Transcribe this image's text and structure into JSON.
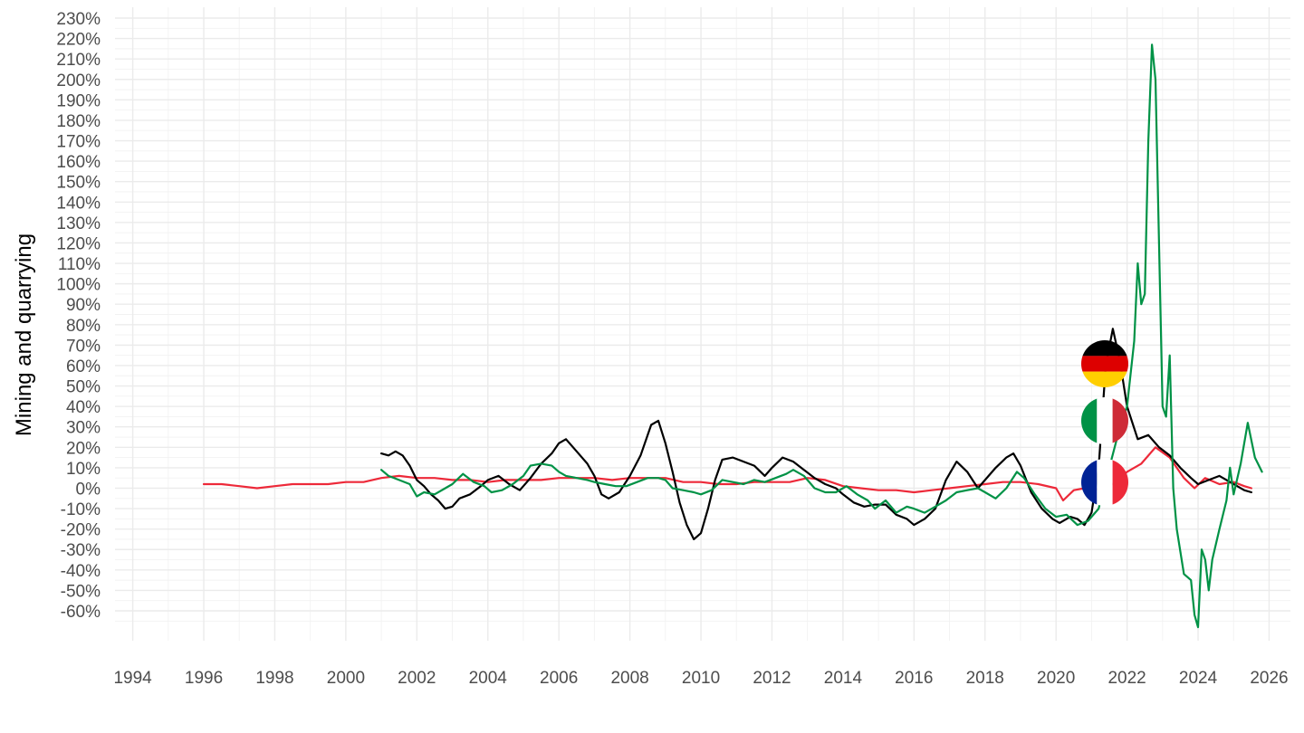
{
  "chart_data": {
    "type": "line",
    "title": "",
    "xlabel": "",
    "ylabel": "Mining and quarrying",
    "xlim": [
      1994,
      2026
    ],
    "ylim": [
      -70,
      230
    ],
    "grid": true,
    "legend": "flags at end of lines",
    "x_ticks": [
      "1994",
      "1996",
      "1998",
      "2000",
      "2002",
      "2004",
      "2006",
      "2008",
      "2010",
      "2012",
      "2014",
      "2016",
      "2018",
      "2020",
      "2022",
      "2024",
      "2026"
    ],
    "y_ticks": [
      "-60%",
      "-50%",
      "-40%",
      "-30%",
      "-20%",
      "-10%",
      "0%",
      "10%",
      "20%",
      "30%",
      "40%",
      "50%",
      "60%",
      "70%",
      "80%",
      "90%",
      "100%",
      "110%",
      "120%",
      "130%",
      "140%",
      "150%",
      "160%",
      "170%",
      "180%",
      "190%",
      "200%",
      "210%",
      "220%",
      "230%"
    ],
    "series": [
      {
        "country": "Germany",
        "color": "#000000",
        "flag_icon": "germany-flag-icon",
        "flag_value": 60,
        "points": [
          [
            2001.0,
            17
          ],
          [
            2001.2,
            16
          ],
          [
            2001.4,
            18
          ],
          [
            2001.6,
            16
          ],
          [
            2001.8,
            11
          ],
          [
            2002.0,
            4
          ],
          [
            2002.2,
            1
          ],
          [
            2002.4,
            -3
          ],
          [
            2002.6,
            -6
          ],
          [
            2002.8,
            -10
          ],
          [
            2003.0,
            -9
          ],
          [
            2003.2,
            -5
          ],
          [
            2003.5,
            -3
          ],
          [
            2003.8,
            1
          ],
          [
            2004.0,
            4
          ],
          [
            2004.3,
            6
          ],
          [
            2004.6,
            2
          ],
          [
            2004.9,
            -1
          ],
          [
            2005.2,
            5
          ],
          [
            2005.5,
            12
          ],
          [
            2005.8,
            17
          ],
          [
            2006.0,
            22
          ],
          [
            2006.2,
            24
          ],
          [
            2006.5,
            18
          ],
          [
            2006.8,
            12
          ],
          [
            2007.0,
            6
          ],
          [
            2007.2,
            -3
          ],
          [
            2007.4,
            -5
          ],
          [
            2007.7,
            -2
          ],
          [
            2008.0,
            6
          ],
          [
            2008.3,
            16
          ],
          [
            2008.6,
            31
          ],
          [
            2008.8,
            33
          ],
          [
            2009.0,
            22
          ],
          [
            2009.2,
            8
          ],
          [
            2009.4,
            -7
          ],
          [
            2009.6,
            -18
          ],
          [
            2009.8,
            -25
          ],
          [
            2010.0,
            -22
          ],
          [
            2010.2,
            -10
          ],
          [
            2010.4,
            4
          ],
          [
            2010.6,
            14
          ],
          [
            2010.9,
            15
          ],
          [
            2011.2,
            13
          ],
          [
            2011.5,
            11
          ],
          [
            2011.8,
            6
          ],
          [
            2012.0,
            10
          ],
          [
            2012.3,
            15
          ],
          [
            2012.6,
            13
          ],
          [
            2012.9,
            9
          ],
          [
            2013.2,
            5
          ],
          [
            2013.5,
            2
          ],
          [
            2013.8,
            0
          ],
          [
            2014.0,
            -3
          ],
          [
            2014.3,
            -7
          ],
          [
            2014.6,
            -9
          ],
          [
            2014.9,
            -8
          ],
          [
            2015.2,
            -8
          ],
          [
            2015.5,
            -13
          ],
          [
            2015.8,
            -15
          ],
          [
            2016.0,
            -18
          ],
          [
            2016.3,
            -15
          ],
          [
            2016.6,
            -10
          ],
          [
            2016.9,
            4
          ],
          [
            2017.2,
            13
          ],
          [
            2017.5,
            8
          ],
          [
            2017.8,
            0
          ],
          [
            2018.0,
            4
          ],
          [
            2018.3,
            10
          ],
          [
            2018.6,
            15
          ],
          [
            2018.8,
            17
          ],
          [
            2019.0,
            11
          ],
          [
            2019.3,
            -2
          ],
          [
            2019.6,
            -10
          ],
          [
            2019.9,
            -15
          ],
          [
            2020.1,
            -17
          ],
          [
            2020.4,
            -14
          ],
          [
            2020.6,
            -15
          ],
          [
            2020.8,
            -18
          ],
          [
            2021.0,
            -12
          ],
          [
            2021.2,
            10
          ],
          [
            2021.4,
            60
          ],
          [
            2021.6,
            78
          ],
          [
            2021.8,
            62
          ],
          [
            2022.0,
            40
          ],
          [
            2022.3,
            24
          ],
          [
            2022.6,
            26
          ],
          [
            2022.9,
            20
          ],
          [
            2023.2,
            16
          ],
          [
            2023.5,
            10
          ],
          [
            2023.8,
            5
          ],
          [
            2024.0,
            2
          ],
          [
            2024.3,
            4
          ],
          [
            2024.6,
            6
          ],
          [
            2024.9,
            3
          ],
          [
            2025.1,
            1
          ],
          [
            2025.3,
            -1
          ],
          [
            2025.5,
            -2
          ]
        ]
      },
      {
        "country": "Italy",
        "color": "#009246",
        "flag_icon": "italy-flag-icon",
        "flag_value": 33,
        "points": [
          [
            2001.0,
            9
          ],
          [
            2001.2,
            6
          ],
          [
            2001.5,
            4
          ],
          [
            2001.8,
            2
          ],
          [
            2002.0,
            -4
          ],
          [
            2002.2,
            -2
          ],
          [
            2002.5,
            -3
          ],
          [
            2002.8,
            0
          ],
          [
            2003.0,
            2
          ],
          [
            2003.3,
            7
          ],
          [
            2003.6,
            3
          ],
          [
            2003.9,
            1
          ],
          [
            2004.1,
            -2
          ],
          [
            2004.4,
            -1
          ],
          [
            2004.7,
            2
          ],
          [
            2005.0,
            6
          ],
          [
            2005.2,
            11
          ],
          [
            2005.5,
            12
          ],
          [
            2005.8,
            11
          ],
          [
            2006.0,
            8
          ],
          [
            2006.2,
            6
          ],
          [
            2006.5,
            5
          ],
          [
            2006.8,
            4
          ],
          [
            2007.0,
            3
          ],
          [
            2007.3,
            2
          ],
          [
            2007.6,
            1
          ],
          [
            2007.9,
            1
          ],
          [
            2008.2,
            3
          ],
          [
            2008.5,
            5
          ],
          [
            2008.8,
            5
          ],
          [
            2009.0,
            4
          ],
          [
            2009.2,
            0
          ],
          [
            2009.5,
            -1
          ],
          [
            2009.8,
            -2
          ],
          [
            2010.0,
            -3
          ],
          [
            2010.3,
            -1
          ],
          [
            2010.6,
            4
          ],
          [
            2010.9,
            3
          ],
          [
            2011.2,
            2
          ],
          [
            2011.5,
            4
          ],
          [
            2011.8,
            3
          ],
          [
            2012.1,
            5
          ],
          [
            2012.4,
            7
          ],
          [
            2012.6,
            9
          ],
          [
            2012.9,
            6
          ],
          [
            2013.2,
            0
          ],
          [
            2013.5,
            -2
          ],
          [
            2013.8,
            -2
          ],
          [
            2014.1,
            1
          ],
          [
            2014.4,
            -3
          ],
          [
            2014.7,
            -6
          ],
          [
            2014.9,
            -10
          ],
          [
            2015.2,
            -6
          ],
          [
            2015.5,
            -12
          ],
          [
            2015.8,
            -9
          ],
          [
            2016.0,
            -10
          ],
          [
            2016.3,
            -12
          ],
          [
            2016.6,
            -9
          ],
          [
            2016.9,
            -6
          ],
          [
            2017.2,
            -2
          ],
          [
            2017.5,
            -1
          ],
          [
            2017.8,
            0
          ],
          [
            2018.0,
            -2
          ],
          [
            2018.3,
            -5
          ],
          [
            2018.6,
            0
          ],
          [
            2018.9,
            8
          ],
          [
            2019.1,
            5
          ],
          [
            2019.4,
            -3
          ],
          [
            2019.7,
            -10
          ],
          [
            2020.0,
            -14
          ],
          [
            2020.3,
            -13
          ],
          [
            2020.6,
            -18
          ],
          [
            2020.9,
            -16
          ],
          [
            2021.2,
            -10
          ],
          [
            2021.5,
            10
          ],
          [
            2021.8,
            30
          ],
          [
            2022.0,
            40
          ],
          [
            2022.2,
            72
          ],
          [
            2022.3,
            110
          ],
          [
            2022.4,
            90
          ],
          [
            2022.5,
            95
          ],
          [
            2022.6,
            170
          ],
          [
            2022.7,
            217
          ],
          [
            2022.8,
            200
          ],
          [
            2022.9,
            120
          ],
          [
            2023.0,
            40
          ],
          [
            2023.1,
            35
          ],
          [
            2023.2,
            65
          ],
          [
            2023.3,
            0
          ],
          [
            2023.4,
            -20
          ],
          [
            2023.6,
            -42
          ],
          [
            2023.8,
            -45
          ],
          [
            2023.9,
            -62
          ],
          [
            2024.0,
            -68
          ],
          [
            2024.1,
            -30
          ],
          [
            2024.2,
            -35
          ],
          [
            2024.3,
            -50
          ],
          [
            2024.4,
            -35
          ],
          [
            2024.6,
            -20
          ],
          [
            2024.8,
            -6
          ],
          [
            2024.9,
            10
          ],
          [
            2025.0,
            -3
          ],
          [
            2025.2,
            12
          ],
          [
            2025.4,
            32
          ],
          [
            2025.6,
            15
          ],
          [
            2025.8,
            8
          ]
        ]
      },
      {
        "country": "France",
        "color": "#ed2939",
        "flag_icon": "france-flag-icon",
        "flag_value": 2,
        "points": [
          [
            1996.0,
            2
          ],
          [
            1996.5,
            2
          ],
          [
            1997.0,
            1
          ],
          [
            1997.5,
            0
          ],
          [
            1998.0,
            1
          ],
          [
            1998.5,
            2
          ],
          [
            1999.0,
            2
          ],
          [
            1999.5,
            2
          ],
          [
            2000.0,
            3
          ],
          [
            2000.5,
            3
          ],
          [
            2001.0,
            5
          ],
          [
            2001.5,
            6
          ],
          [
            2002.0,
            5
          ],
          [
            2002.5,
            5
          ],
          [
            2003.0,
            4
          ],
          [
            2003.5,
            4
          ],
          [
            2004.0,
            3
          ],
          [
            2004.5,
            4
          ],
          [
            2005.0,
            4
          ],
          [
            2005.5,
            4
          ],
          [
            2006.0,
            5
          ],
          [
            2006.5,
            5
          ],
          [
            2007.0,
            5
          ],
          [
            2007.5,
            4
          ],
          [
            2008.0,
            5
          ],
          [
            2008.5,
            5
          ],
          [
            2009.0,
            5
          ],
          [
            2009.5,
            3
          ],
          [
            2010.0,
            3
          ],
          [
            2010.5,
            2
          ],
          [
            2011.0,
            2
          ],
          [
            2011.5,
            3
          ],
          [
            2012.0,
            3
          ],
          [
            2012.5,
            3
          ],
          [
            2013.0,
            5
          ],
          [
            2013.5,
            4
          ],
          [
            2014.0,
            1
          ],
          [
            2014.5,
            0
          ],
          [
            2015.0,
            -1
          ],
          [
            2015.5,
            -1
          ],
          [
            2016.0,
            -2
          ],
          [
            2016.5,
            -1
          ],
          [
            2017.0,
            0
          ],
          [
            2017.5,
            1
          ],
          [
            2018.0,
            2
          ],
          [
            2018.5,
            3
          ],
          [
            2019.0,
            3
          ],
          [
            2019.5,
            2
          ],
          [
            2020.0,
            0
          ],
          [
            2020.2,
            -6
          ],
          [
            2020.5,
            -1
          ],
          [
            2020.8,
            0
          ],
          [
            2021.0,
            -1
          ],
          [
            2021.3,
            0
          ],
          [
            2021.6,
            2
          ],
          [
            2022.0,
            8
          ],
          [
            2022.4,
            12
          ],
          [
            2022.8,
            20
          ],
          [
            2023.2,
            15
          ],
          [
            2023.6,
            5
          ],
          [
            2023.9,
            0
          ],
          [
            2024.2,
            5
          ],
          [
            2024.6,
            2
          ],
          [
            2025.0,
            3
          ],
          [
            2025.3,
            1
          ],
          [
            2025.5,
            0
          ]
        ]
      }
    ]
  }
}
